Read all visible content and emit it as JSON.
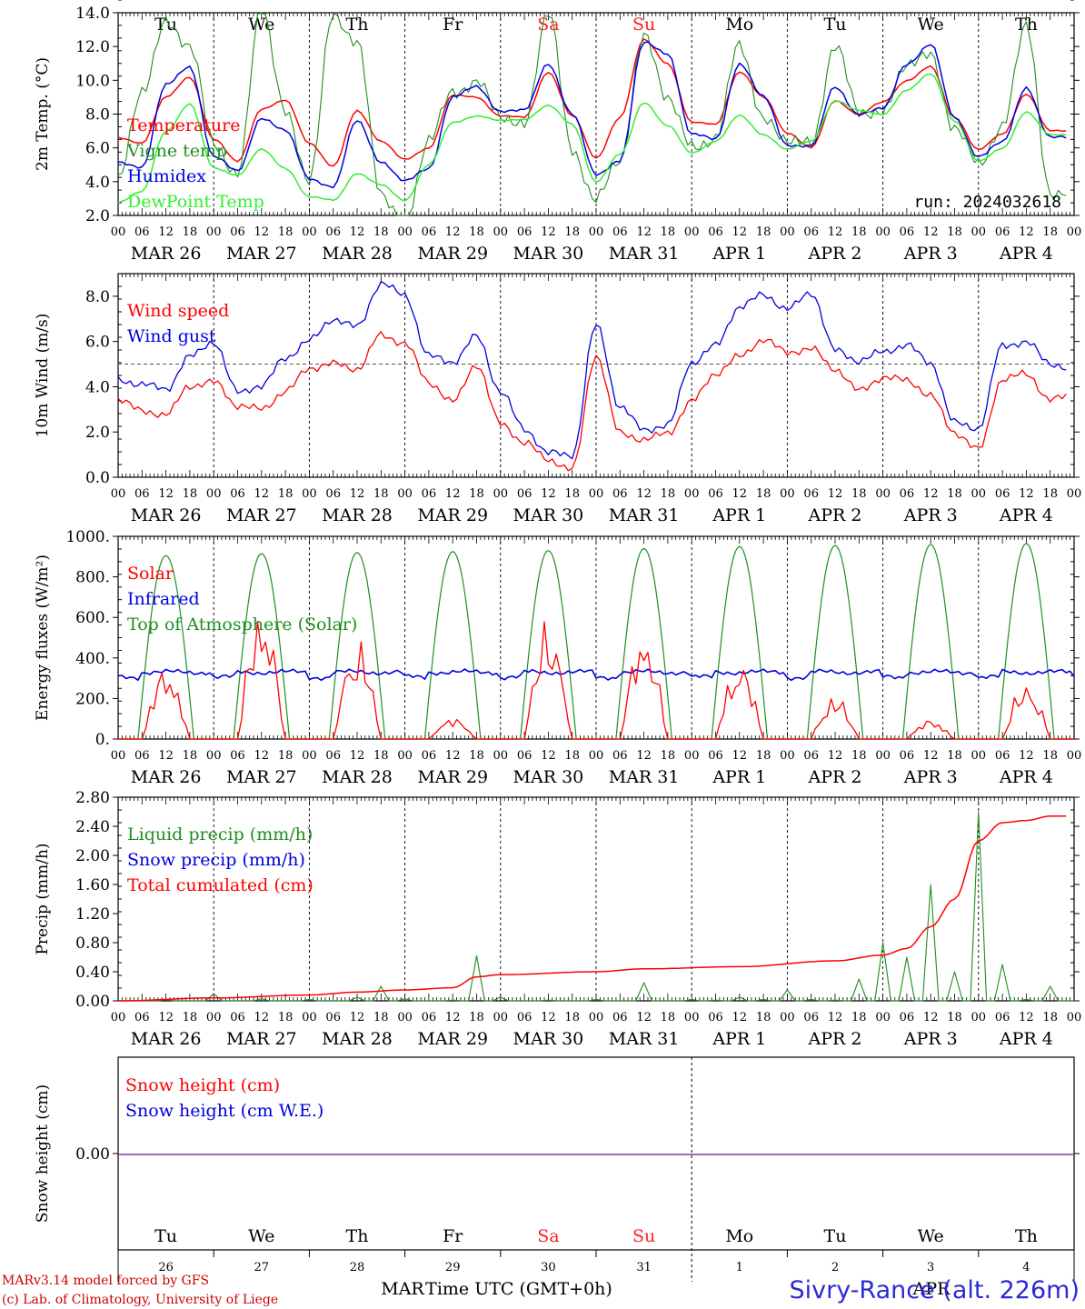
{
  "chart_data": [
    {
      "type": "line",
      "ylabel": "2m Temp. (°C)",
      "ylim": [
        2.0,
        14.0
      ],
      "yticks": [
        "2.0",
        "4.0",
        "6.0",
        "8.0",
        "10.0",
        "12.0",
        "14.0"
      ],
      "run_label": "run: 2024032618",
      "x_hours": [
        0,
        6,
        12,
        18,
        24,
        30,
        36,
        42,
        48,
        54,
        60,
        66,
        72,
        78,
        84,
        90,
        96,
        102,
        108,
        114,
        120,
        126,
        132,
        138,
        144,
        150,
        156,
        162,
        168,
        174,
        180,
        186,
        192,
        198,
        204,
        210,
        216,
        222,
        228,
        234
      ],
      "series": [
        {
          "name": "Temperature",
          "color": "#ff0000",
          "values": [
            6.6,
            6.3,
            9.0,
            10.2,
            6.5,
            5.2,
            8.3,
            8.8,
            6.3,
            4.9,
            8.2,
            6.4,
            5.3,
            6.0,
            9.1,
            9.0,
            7.9,
            7.8,
            10.5,
            7.9,
            5.4,
            7.8,
            12.4,
            11.0,
            7.5,
            7.4,
            10.5,
            9.0,
            6.9,
            6.0,
            8.8,
            8.0,
            8.7,
            10.0,
            10.8,
            7.8,
            5.9,
            6.8,
            9.2,
            7.0
          ]
        },
        {
          "name": "Vigne temp",
          "color": "#1f8f1f",
          "values": [
            4.3,
            9.0,
            13.8,
            11.8,
            6.3,
            4.6,
            14.0,
            8.5,
            3.8,
            14.0,
            12.4,
            3.0,
            1.8,
            6.2,
            9.4,
            10.0,
            7.6,
            7.7,
            13.8,
            6.0,
            3.0,
            5.0,
            13.0,
            8.6,
            6.3,
            6.5,
            12.0,
            8.0,
            6.1,
            6.5,
            12.0,
            8.0,
            8.4,
            10.6,
            11.8,
            7.0,
            5.0,
            7.5,
            13.0,
            3.5
          ]
        },
        {
          "name": "Humidex",
          "color": "#0000dd",
          "values": [
            5.1,
            4.9,
            9.7,
            10.8,
            5.5,
            4.6,
            7.8,
            7.0,
            4.2,
            3.7,
            7.6,
            5.2,
            4.0,
            4.8,
            9.0,
            9.6,
            8.2,
            8.2,
            11.0,
            8.0,
            4.4,
            5.3,
            12.2,
            11.6,
            6.8,
            6.5,
            11.0,
            9.0,
            6.2,
            6.1,
            9.6,
            8.0,
            8.3,
            11.0,
            12.1,
            7.8,
            5.5,
            6.3,
            9.6,
            6.6
          ]
        },
        {
          "name": "DewPoint Temp",
          "color": "#33ee33",
          "values": [
            2.8,
            3.4,
            7.0,
            8.6,
            4.8,
            4.4,
            5.9,
            4.8,
            3.1,
            2.9,
            4.5,
            3.8,
            2.9,
            5.0,
            7.5,
            7.9,
            7.6,
            7.7,
            8.5,
            7.4,
            4.0,
            5.6,
            8.7,
            7.3,
            5.7,
            6.4,
            7.9,
            6.8,
            5.9,
            6.4,
            8.8,
            8.2,
            8.0,
            9.4,
            10.4,
            7.6,
            5.2,
            6.0,
            8.1,
            6.8
          ]
        }
      ]
    },
    {
      "type": "line",
      "ylabel": "10m Wind (m/s)",
      "ylim": [
        0.0,
        9.0
      ],
      "yticks": [
        "0.0",
        "2.0",
        "4.0",
        "6.0",
        "8.0"
      ],
      "x_hours": [
        0,
        6,
        12,
        18,
        24,
        30,
        36,
        42,
        48,
        54,
        60,
        66,
        72,
        78,
        84,
        90,
        96,
        102,
        108,
        114,
        120,
        126,
        132,
        138,
        144,
        150,
        156,
        162,
        168,
        174,
        180,
        186,
        192,
        198,
        204,
        210,
        216,
        222,
        228,
        234
      ],
      "series": [
        {
          "name": "Wind speed",
          "color": "#ff0000",
          "values": [
            3.3,
            3.0,
            2.8,
            3.9,
            4.4,
            3.0,
            3.1,
            3.8,
            4.7,
            5.2,
            4.6,
            6.4,
            5.9,
            4.1,
            3.5,
            4.8,
            2.5,
            1.5,
            0.7,
            0.5,
            5.2,
            2.1,
            1.6,
            1.9,
            3.5,
            4.4,
            5.5,
            6.0,
            5.5,
            5.8,
            4.6,
            4.0,
            4.3,
            4.3,
            3.7,
            1.8,
            1.4,
            4.2,
            4.6,
            3.5
          ]
        },
        {
          "name": "Wind gust",
          "color": "#0000dd",
          "values": [
            4.4,
            4.1,
            3.8,
            5.5,
            5.8,
            3.9,
            4.0,
            5.2,
            6.2,
            6.8,
            6.8,
            8.5,
            8.0,
            5.5,
            4.9,
            6.4,
            3.7,
            2.1,
            1.2,
            0.8,
            6.9,
            3.0,
            2.1,
            2.4,
            4.9,
            6.0,
            7.4,
            8.1,
            7.5,
            8.0,
            5.8,
            5.0,
            5.6,
            5.9,
            4.9,
            2.6,
            2.0,
            5.9,
            6.0,
            4.9
          ]
        }
      ],
      "reference_line": 5.0
    },
    {
      "type": "line",
      "ylabel": "Energy fluxes (W/m²)",
      "ylim": [
        0,
        1000
      ],
      "yticks": [
        "0.",
        "200.",
        "400.",
        "600.",
        "800.",
        "1000."
      ],
      "series": [
        {
          "name": "Solar",
          "color": "#ff0000",
          "peaks": [
            370,
            680,
            510,
            110,
            600,
            550,
            400,
            220,
            100,
            290
          ]
        },
        {
          "name": "Infrared",
          "color": "#0000dd",
          "level": 330
        },
        {
          "name": "Top of Atmosphere (Solar)",
          "color": "#1f8f1f",
          "peaks": [
            905,
            915,
            920,
            925,
            930,
            940,
            950,
            955,
            960,
            965
          ]
        }
      ]
    },
    {
      "type": "line",
      "ylabel": "Precip (mm/h)",
      "ylim": [
        0.0,
        2.8
      ],
      "yticks": [
        "0.00",
        "0.40",
        "0.80",
        "1.20",
        "1.60",
        "2.00",
        "2.40",
        "2.80"
      ],
      "series": [
        {
          "name": "Liquid precip (mm/h)",
          "color": "#1f8f1f",
          "x_hours": [
            0,
            12,
            24,
            36,
            48,
            60,
            66,
            72,
            78,
            84,
            90,
            96,
            108,
            120,
            132,
            144,
            150,
            156,
            162,
            168,
            174,
            180,
            186,
            192,
            198,
            204,
            210,
            216,
            222,
            228,
            234
          ],
          "values": [
            0,
            0.02,
            0.1,
            0.03,
            0.02,
            0.05,
            0.2,
            0.03,
            0,
            0.01,
            0.62,
            0.05,
            0.01,
            0.02,
            0.25,
            0.02,
            0.01,
            0.05,
            0.02,
            0.15,
            0.02,
            0.01,
            0.3,
            0.8,
            0.6,
            1.6,
            0.4,
            2.6,
            0.5,
            0.02,
            0.2
          ]
        },
        {
          "name": "Snow precip (mm/h)",
          "color": "#0000dd",
          "values": []
        },
        {
          "name": "Total cumulated (cm)",
          "color": "#ff0000",
          "x_hours": [
            0,
            24,
            48,
            60,
            72,
            84,
            90,
            96,
            120,
            132,
            156,
            180,
            192,
            198,
            204,
            210,
            216,
            222,
            228,
            234
          ],
          "values": [
            0,
            0.04,
            0.08,
            0.12,
            0.15,
            0.18,
            0.33,
            0.36,
            0.4,
            0.44,
            0.47,
            0.55,
            0.63,
            0.72,
            1.02,
            1.4,
            2.2,
            2.45,
            2.48,
            2.54
          ]
        }
      ]
    },
    {
      "type": "line",
      "ylabel": "Snow height (cm)",
      "yticks": [
        "0.00"
      ],
      "series": [
        {
          "name": "Snow height (cm)",
          "color": "#ff0000",
          "values": [
            0,
            0
          ]
        },
        {
          "name": "Snow height (cm W.E.)",
          "color": "#0000dd",
          "values": [
            0,
            0
          ]
        }
      ]
    }
  ],
  "days": [
    "Tu",
    "We",
    "Th",
    "Fr",
    "Sa",
    "Su",
    "Mo",
    "Tu",
    "We",
    "Th"
  ],
  "weekend_color": "#ff2020",
  "day_numbers": [
    "26",
    "27",
    "28",
    "29",
    "30",
    "31",
    "1",
    "2",
    "3",
    "4"
  ],
  "month_overlay": {
    "mar": "MAR",
    "apr": "APR"
  },
  "dates": [
    "MAR 26",
    "MAR 27",
    "MAR 28",
    "MAR 29",
    "MAR 30",
    "MAR 31",
    "APR  1",
    "APR  2",
    "APR  3",
    "APR  4"
  ],
  "hour_ticks": [
    "00",
    "06",
    "12",
    "18"
  ],
  "xlabel": "Time UTC (GMT+0h)",
  "footer": {
    "line1": "MARv3.14 model forced by GFS",
    "line2": "(c) Lab. of Climatology, University of Liege"
  },
  "station": "Sivry-Rance (alt. 226m)"
}
